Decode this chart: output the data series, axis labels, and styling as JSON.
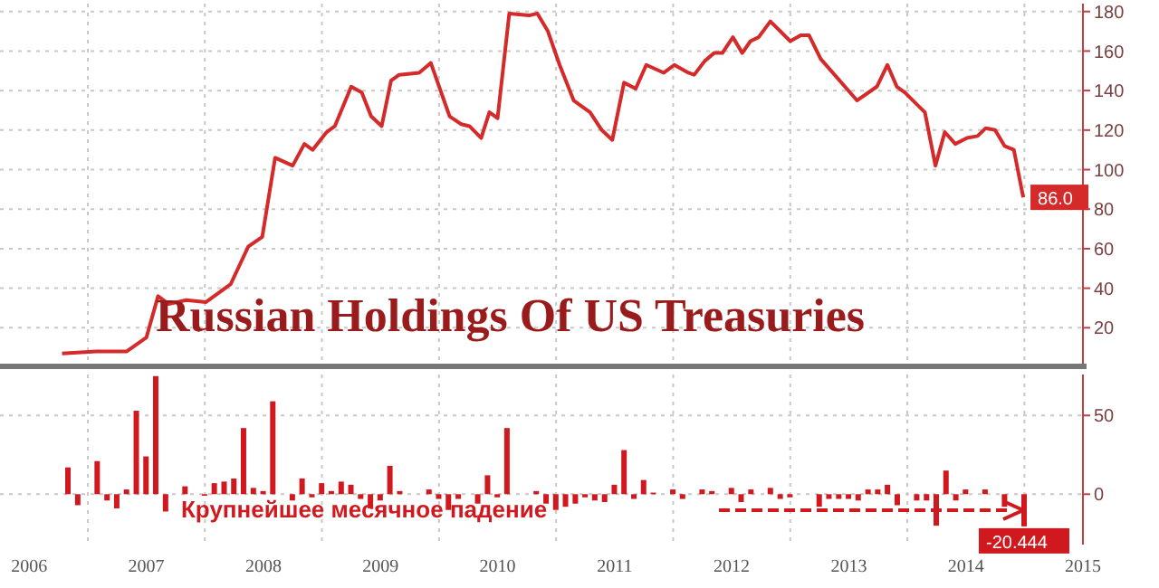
{
  "chart_data": [
    {
      "type": "line",
      "title": "Russian Holdings Of US Treasuries",
      "x": [
        2006.78,
        2007.07,
        2007.26,
        2007.33,
        2007.5,
        2007.6,
        2007.69,
        2007.84,
        2008.01,
        2008.22,
        2008.37,
        2008.49,
        2008.6,
        2008.75,
        2008.85,
        2008.92,
        2009.04,
        2009.11,
        2009.25,
        2009.34,
        2009.42,
        2009.51,
        2009.59,
        2009.66,
        2009.83,
        2009.93,
        2010.09,
        2010.19,
        2010.26,
        2010.36,
        2010.43,
        2010.5,
        2010.6,
        2010.77,
        2010.84,
        2010.93,
        2011.03,
        2011.15,
        2011.29,
        2011.39,
        2011.48,
        2011.58,
        2011.68,
        2011.77,
        2011.92,
        2012.01,
        2012.13,
        2012.18,
        2012.27,
        2012.35,
        2012.42,
        2012.51,
        2012.59,
        2012.66,
        2012.73,
        2012.83,
        2013.0,
        2013.09,
        2013.16,
        2013.26,
        2013.57,
        2013.74,
        2013.83,
        2013.91,
        2013.98,
        2014.15,
        2014.24,
        2014.32,
        2014.41,
        2014.51,
        2014.6,
        2014.67,
        2014.75,
        2014.83,
        2014.91,
        2014.99
      ],
      "series": [
        {
          "color": "#d42a2a",
          "values": [
            7,
            8,
            8,
            8,
            15,
            36,
            32,
            34,
            33,
            42,
            61,
            66,
            106,
            102,
            113,
            110,
            119,
            122,
            142,
            139,
            127,
            122,
            145,
            148,
            149,
            154,
            127,
            123,
            122,
            116,
            129,
            126,
            179,
            178,
            179,
            170,
            153,
            135,
            129,
            120,
            115,
            144,
            141,
            153,
            149,
            153,
            149,
            148,
            155,
            159,
            159,
            167,
            159,
            165,
            167,
            175,
            165,
            168,
            168,
            156,
            135,
            142,
            153,
            142,
            139,
            129,
            102,
            119,
            113,
            116,
            117,
            121,
            120,
            112,
            110,
            86.0
          ],
          "value_labels": [
            null,
            null,
            null,
            null,
            null,
            null,
            null,
            null,
            null,
            null,
            null,
            null,
            null,
            null,
            null,
            null,
            null,
            null,
            null,
            null,
            null,
            null,
            null,
            null,
            null,
            null,
            null,
            null,
            null,
            null,
            null,
            null,
            null,
            null,
            null,
            null,
            null,
            null,
            null,
            null,
            null,
            null,
            null,
            null,
            null,
            null,
            null,
            null,
            null,
            null,
            null,
            null,
            null,
            null,
            null,
            null,
            null,
            null,
            null,
            null,
            null,
            null,
            null,
            null,
            null,
            null,
            null,
            null,
            null,
            null,
            null,
            null,
            null,
            null,
            null,
            "86.0"
          ]
        }
      ],
      "xlim": [
        2006.25,
        2015.5
      ],
      "xticks": [
        {
          "value": 2007,
          "label": null
        },
        {
          "value": 2008,
          "label": null
        },
        {
          "value": 2009,
          "label": null
        },
        {
          "value": 2010,
          "label": null
        },
        {
          "value": 2011,
          "label": null
        },
        {
          "value": 2012,
          "label": null
        },
        {
          "value": 2013,
          "label": null
        },
        {
          "value": 2014,
          "label": null
        },
        {
          "value": 2015,
          "label": null
        }
      ],
      "ylim": [
        0,
        184
      ],
      "yticks": [
        20,
        40,
        60,
        80,
        100,
        120,
        140,
        160,
        180
      ],
      "grid": true,
      "tick_labels": "y"
    },
    {
      "type": "bar",
      "x": [
        2006.833,
        2006.917,
        2007.083,
        2007.167,
        2007.25,
        2007.333,
        2007.417,
        2007.5,
        2007.583,
        2007.667,
        2007.833,
        2008.0,
        2008.083,
        2008.167,
        2008.25,
        2008.333,
        2008.417,
        2008.5,
        2008.583,
        2008.75,
        2008.833,
        2008.917,
        2009.0,
        2009.083,
        2009.167,
        2009.25,
        2009.333,
        2009.417,
        2009.5,
        2009.583,
        2009.667,
        2009.917,
        2010.0,
        2010.083,
        2010.167,
        2010.333,
        2010.417,
        2010.5,
        2010.583,
        2010.833,
        2010.917,
        2011.0,
        2011.083,
        2011.167,
        2011.25,
        2011.333,
        2011.417,
        2011.5,
        2011.583,
        2011.667,
        2011.75,
        2011.833,
        2012.0,
        2012.083,
        2012.25,
        2012.333,
        2012.5,
        2012.583,
        2012.667,
        2012.833,
        2012.917,
        2013.0,
        2013.25,
        2013.333,
        2013.417,
        2013.5,
        2013.583,
        2013.667,
        2013.75,
        2013.833,
        2013.917,
        2014.083,
        2014.167,
        2014.25,
        2014.333,
        2014.417,
        2014.5,
        2014.667,
        2014.833,
        2015.0
      ],
      "series": [
        {
          "color": "#d0191f",
          "values": [
            17,
            -7,
            21,
            -4,
            -9,
            3,
            53,
            24,
            75,
            -11,
            5,
            -1,
            7,
            8,
            10,
            42,
            4,
            2,
            59,
            -4,
            10,
            -2,
            7,
            2,
            8,
            6,
            -3,
            -9,
            -4,
            18,
            2,
            3,
            -3,
            -10,
            -3,
            -6,
            12,
            -2,
            42,
            2,
            -6,
            -10,
            -8,
            -6,
            -2,
            -4,
            -5,
            6,
            28,
            -3,
            9,
            1,
            3,
            -3,
            3,
            2,
            4,
            -5,
            3,
            4,
            -3,
            -2,
            -8,
            -3,
            -3,
            -3,
            -4,
            3,
            3,
            6,
            -7,
            -4,
            -4,
            -20,
            15,
            -4,
            3,
            3,
            -8,
            -20.444
          ],
          "value_labels": [
            null,
            null,
            null,
            null,
            null,
            null,
            null,
            null,
            null,
            null,
            null,
            null,
            null,
            null,
            null,
            null,
            null,
            null,
            null,
            null,
            null,
            null,
            null,
            null,
            null,
            null,
            null,
            null,
            null,
            null,
            null,
            null,
            null,
            null,
            null,
            null,
            null,
            null,
            null,
            null,
            null,
            null,
            null,
            null,
            null,
            null,
            null,
            null,
            null,
            null,
            null,
            null,
            null,
            null,
            null,
            null,
            null,
            null,
            null,
            null,
            null,
            null,
            null,
            null,
            null,
            null,
            null,
            null,
            null,
            null,
            null,
            null,
            null,
            null,
            null,
            null,
            null,
            null,
            null,
            "-20.444"
          ]
        }
      ],
      "xlim": [
        2006.25,
        2015.5
      ],
      "xticks": [
        {
          "value": 2006.5,
          "label": "2006"
        },
        {
          "value": 2007,
          "label": null
        },
        {
          "value": 2007.5,
          "label": "2007"
        },
        {
          "value": 2008,
          "label": null
        },
        {
          "value": 2008.5,
          "label": "2008"
        },
        {
          "value": 2009,
          "label": null
        },
        {
          "value": 2009.5,
          "label": "2009"
        },
        {
          "value": 2010,
          "label": null
        },
        {
          "value": 2010.5,
          "label": "2010"
        },
        {
          "value": 2011,
          "label": null
        },
        {
          "value": 2011.5,
          "label": "2011"
        },
        {
          "value": 2012,
          "label": null
        },
        {
          "value": 2012.5,
          "label": "2012"
        },
        {
          "value": 2013,
          "label": null
        },
        {
          "value": 2013.5,
          "label": "2013"
        },
        {
          "value": 2014,
          "label": null
        },
        {
          "value": 2014.5,
          "label": "2014"
        },
        {
          "value": 2015,
          "label": null
        },
        {
          "value": 2015.5,
          "label": "2015"
        }
      ],
      "ylim": [
        -32,
        76
      ],
      "yticks": [
        0,
        50
      ],
      "grid": true,
      "annotations": [
        "Крупнейшее месячное падение"
      ]
    }
  ]
}
